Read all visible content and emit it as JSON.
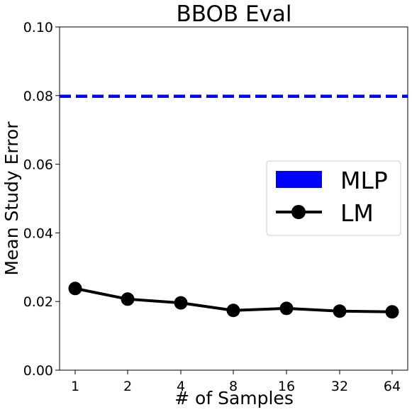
{
  "chart_data": {
    "type": "line",
    "title": "BBOB Eval",
    "xlabel": "# of Samples",
    "ylabel": "Mean Study Error",
    "x_scale": "log2",
    "x": [
      1,
      2,
      4,
      8,
      16,
      32,
      64
    ],
    "x_ticks": [
      "1",
      "2",
      "4",
      "8",
      "16",
      "32",
      "64"
    ],
    "ylim": [
      0,
      0.1
    ],
    "y_ticks": [
      "0.00",
      "0.02",
      "0.04",
      "0.06",
      "0.08",
      "0.10"
    ],
    "grid": false,
    "legend_position": "center-right",
    "series": [
      {
        "name": "MLP",
        "style": "dashed",
        "color": "#0000ff",
        "y": 0.0798
      },
      {
        "name": "LM",
        "style": "solid-with-circle-markers",
        "color": "#000000",
        "values": [
          0.0238,
          0.0207,
          0.0196,
          0.0174,
          0.018,
          0.0172,
          0.017
        ]
      }
    ]
  }
}
